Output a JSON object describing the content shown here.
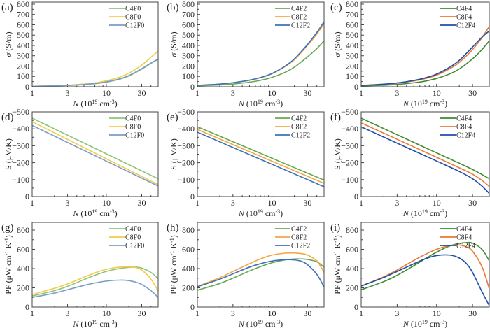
{
  "colors": {
    "F0": {
      "C4": "#8cc47a",
      "C8": "#f2cc4a",
      "C12": "#7c9cc6"
    },
    "F2": {
      "C4": "#6aa84f",
      "C8": "#f5a742",
      "C12": "#3d72b8"
    },
    "F4": {
      "C4": "#3e8c2f",
      "C8": "#ee7733",
      "C12": "#1f4fa6"
    }
  },
  "chart_data": [
    {
      "panel": "(a)",
      "type": "line",
      "xscale": "log",
      "xlabel": "N (10^19 cm^-3)",
      "ylabel": "σ (S/m)",
      "xlim": [
        1,
        50
      ],
      "ylim": [
        0,
        820
      ],
      "xticks": [
        1,
        3,
        10,
        30
      ],
      "yticks": [
        0,
        100,
        200,
        300,
        400,
        500,
        600,
        700,
        800
      ],
      "legend": "top-right",
      "x": [
        1,
        2,
        3,
        5,
        7,
        10,
        15,
        20,
        30,
        40,
        50
      ],
      "series": [
        {
          "name": "C4F0",
          "values": [
            4,
            8,
            12,
            20,
            29,
            44,
            72,
            103,
            170,
            226,
            265
          ]
        },
        {
          "name": "C8F0",
          "values": [
            5,
            10,
            15,
            26,
            37,
            57,
            92,
            130,
            210,
            285,
            345
          ]
        },
        {
          "name": "C12F0",
          "values": [
            4,
            9,
            13,
            22,
            31,
            47,
            76,
            108,
            175,
            230,
            268
          ]
        }
      ]
    },
    {
      "panel": "(b)",
      "type": "line",
      "xscale": "log",
      "xlabel": "N (10^19 cm^-3)",
      "ylabel": "σ (S/m)",
      "xlim": [
        1,
        50
      ],
      "ylim": [
        0,
        820
      ],
      "xticks": [
        1,
        3,
        10,
        30
      ],
      "yticks": [
        0,
        100,
        200,
        300,
        400,
        500,
        600,
        700,
        800
      ],
      "legend": "top-right",
      "x": [
        1,
        2,
        3,
        5,
        7,
        10,
        15,
        20,
        30,
        40,
        50
      ],
      "series": [
        {
          "name": "C4F2",
          "values": [
            8,
            17,
            26,
            44,
            62,
            90,
            140,
            190,
            290,
            370,
            445
          ]
        },
        {
          "name": "C8F2",
          "values": [
            12,
            25,
            38,
            62,
            87,
            125,
            195,
            262,
            400,
            510,
            610
          ]
        },
        {
          "name": "C12F2",
          "values": [
            13,
            26,
            39,
            64,
            89,
            128,
            200,
            270,
            410,
            525,
            630
          ]
        }
      ]
    },
    {
      "panel": "(c)",
      "type": "line",
      "xscale": "log",
      "xlabel": "N (10^19 cm^-3)",
      "ylabel": "σ (S/m)",
      "xlim": [
        1,
        50
      ],
      "ylim": [
        0,
        820
      ],
      "xticks": [
        1,
        3,
        10,
        30
      ],
      "yticks": [
        0,
        100,
        200,
        300,
        400,
        500,
        600,
        700,
        800
      ],
      "legend": "top-right",
      "x": [
        1,
        2,
        3,
        5,
        7,
        10,
        15,
        20,
        30,
        40,
        50
      ],
      "series": [
        {
          "name": "C4F4",
          "values": [
            7,
            15,
            22,
            38,
            54,
            80,
            125,
            172,
            270,
            360,
            445
          ]
        },
        {
          "name": "C8F4",
          "values": [
            11,
            23,
            34,
            56,
            78,
            112,
            175,
            235,
            360,
            475,
            585
          ]
        },
        {
          "name": "C12F4",
          "values": [
            12,
            25,
            37,
            61,
            85,
            122,
            190,
            255,
            385,
            480,
            540
          ]
        }
      ]
    },
    {
      "panel": "(d)",
      "type": "line",
      "xscale": "log",
      "xlabel": "N (10^19 cm^-3)",
      "ylabel": "S (μV/K)",
      "xlim": [
        1,
        50
      ],
      "ylim": [
        0,
        -500
      ],
      "xticks": [
        1,
        3,
        10,
        30
      ],
      "yticks": [
        0,
        -100,
        -200,
        -300,
        -400,
        -500
      ],
      "legend": "top-right",
      "x": [
        1,
        50
      ],
      "series": [
        {
          "name": "C4F0",
          "values": [
            -463,
            -105
          ]
        },
        {
          "name": "C8F0",
          "values": [
            -442,
            -70
          ]
        },
        {
          "name": "C12F0",
          "values": [
            -420,
            -62
          ]
        }
      ]
    },
    {
      "panel": "(e)",
      "type": "line",
      "xscale": "log",
      "xlabel": "N (10^19 cm^-3)",
      "ylabel": "S (μV/K)",
      "xlim": [
        1,
        50
      ],
      "ylim": [
        0,
        -500
      ],
      "xticks": [
        1,
        3,
        10,
        30
      ],
      "yticks": [
        0,
        -100,
        -200,
        -300,
        -400,
        -500
      ],
      "legend": "top-right",
      "x": [
        1,
        50
      ],
      "series": [
        {
          "name": "C4F2",
          "values": [
            -412,
            -97
          ]
        },
        {
          "name": "C8F2",
          "values": [
            -396,
            -78
          ]
        },
        {
          "name": "C12F2",
          "values": [
            -380,
            -58
          ]
        }
      ]
    },
    {
      "panel": "(f)",
      "type": "line",
      "xscale": "log",
      "xlabel": "N (10^19 cm^-3)",
      "ylabel": "S (μV/K)",
      "xlim": [
        1,
        50
      ],
      "ylim": [
        0,
        -500
      ],
      "xticks": [
        1,
        3,
        10,
        30
      ],
      "yticks": [
        0,
        -100,
        -200,
        -300,
        -400,
        -500
      ],
      "legend": "top-right",
      "x": [
        1,
        3,
        10,
        20,
        30,
        40,
        50
      ],
      "series": [
        {
          "name": "C4F4",
          "values": [
            -463,
            -365,
            -258,
            -197,
            -160,
            -130,
            -105
          ]
        },
        {
          "name": "C8F4",
          "values": [
            -435,
            -338,
            -232,
            -170,
            -132,
            -95,
            -60
          ]
        },
        {
          "name": "C12F4",
          "values": [
            -412,
            -315,
            -210,
            -148,
            -105,
            -62,
            -18
          ]
        }
      ]
    },
    {
      "panel": "(g)",
      "type": "line",
      "xscale": "log",
      "xlabel": "N (10^19 cm^-3)",
      "ylabel": "PF (μW cm^-1 K^-1)",
      "xlim": [
        1,
        50
      ],
      "ylim": [
        0,
        880
      ],
      "xticks": [
        1,
        3,
        10,
        30
      ],
      "yticks": [
        0,
        200,
        400,
        600,
        800
      ],
      "legend": "top-right",
      "x": [
        1,
        2,
        3,
        5,
        7,
        10,
        15,
        20,
        25,
        30,
        40,
        50
      ],
      "series": [
        {
          "name": "C4F0",
          "values": [
            115,
            170,
            215,
            285,
            330,
            370,
            400,
            412,
            415,
            405,
            360,
            295
          ]
        },
        {
          "name": "C8F0",
          "values": [
            130,
            195,
            240,
            310,
            355,
            392,
            415,
            418,
            410,
            385,
            290,
            165
          ]
        },
        {
          "name": "C12F0",
          "values": [
            100,
            145,
            180,
            225,
            250,
            270,
            280,
            275,
            258,
            235,
            170,
            100
          ]
        }
      ]
    },
    {
      "panel": "(h)",
      "type": "line",
      "xscale": "log",
      "xlabel": "N (10^19 cm^-3)",
      "ylabel": "PF (μW cm^-1 K^-1)",
      "xlim": [
        1,
        50
      ],
      "ylim": [
        0,
        880
      ],
      "xticks": [
        1,
        3,
        10,
        30
      ],
      "yticks": [
        0,
        200,
        400,
        600,
        800
      ],
      "legend": "top-right",
      "x": [
        1,
        2,
        3,
        5,
        7,
        10,
        15,
        20,
        25,
        30,
        40,
        50
      ],
      "series": [
        {
          "name": "C4F2",
          "values": [
            175,
            245,
            300,
            375,
            420,
            460,
            490,
            500,
            500,
            495,
            470,
            415
          ]
        },
        {
          "name": "C8F2",
          "values": [
            215,
            305,
            370,
            450,
            500,
            540,
            560,
            562,
            555,
            540,
            480,
            360
          ]
        },
        {
          "name": "C12F2",
          "values": [
            210,
            290,
            345,
            415,
            450,
            478,
            492,
            490,
            475,
            440,
            340,
            210
          ]
        }
      ]
    },
    {
      "panel": "(i)",
      "type": "line",
      "xscale": "log",
      "xlabel": "N (10^19 cm^-3)",
      "ylabel": "PF (μW cm^-1 K^-1)",
      "xlim": [
        1,
        50
      ],
      "ylim": [
        0,
        880
      ],
      "xticks": [
        1,
        3,
        10,
        30
      ],
      "yticks": [
        0,
        200,
        400,
        600,
        800
      ],
      "legend": "top-right",
      "x": [
        1,
        2,
        3,
        5,
        7,
        10,
        15,
        20,
        25,
        30,
        40,
        50
      ],
      "series": [
        {
          "name": "C4F4",
          "values": [
            180,
            265,
            330,
            430,
            500,
            570,
            635,
            662,
            670,
            665,
            600,
            480
          ]
        },
        {
          "name": "C8F4",
          "values": [
            218,
            315,
            385,
            485,
            545,
            600,
            640,
            645,
            625,
            580,
            420,
            190
          ]
        },
        {
          "name": "C12F4",
          "values": [
            218,
            308,
            370,
            450,
            500,
            535,
            540,
            510,
            450,
            360,
            160,
            15
          ]
        }
      ]
    }
  ]
}
